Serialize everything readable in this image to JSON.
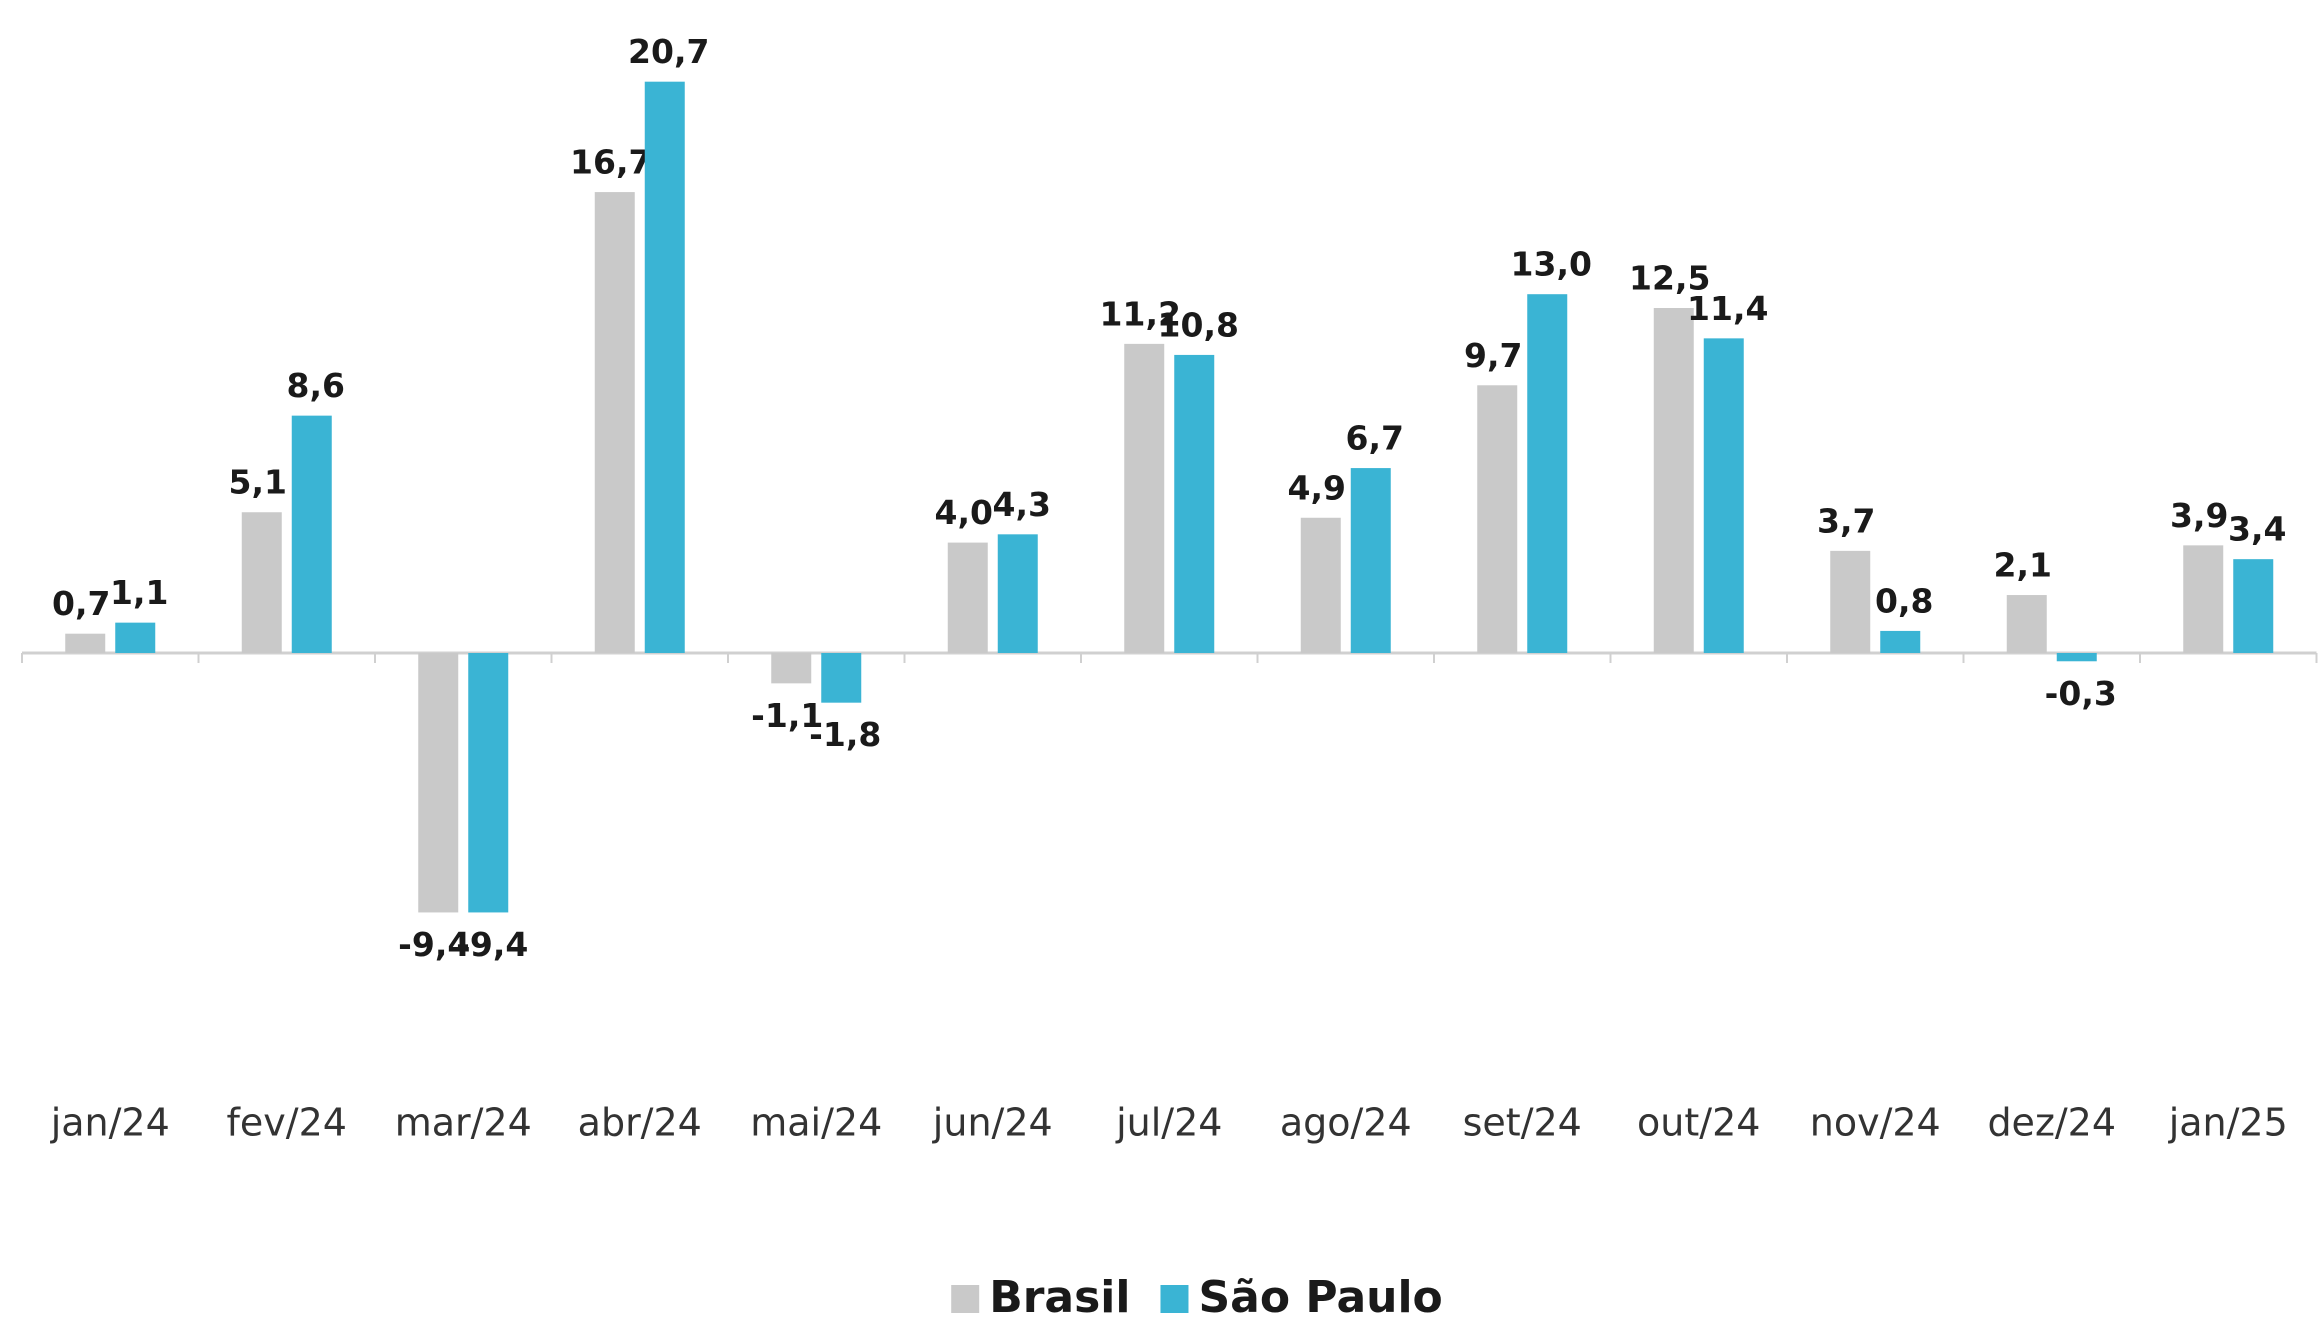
{
  "chart_data": {
    "type": "bar",
    "categories": [
      "jan/24",
      "fev/24",
      "mar/24",
      "abr/24",
      "mai/24",
      "jun/24",
      "jul/24",
      "ago/24",
      "set/24",
      "out/24",
      "nov/24",
      "dez/24",
      "jan/25"
    ],
    "series": [
      {
        "name": "Brasil",
        "color": "#c9c9c9",
        "values": [
          0.7,
          5.1,
          -9.4,
          16.7,
          -1.1,
          4.0,
          11.2,
          4.9,
          9.7,
          12.5,
          3.7,
          2.1,
          3.9
        ],
        "value_labels": [
          "0,7",
          "5,1",
          "-9,4",
          "16,7",
          "-1,1",
          "4,0",
          "11,2",
          "4,9",
          "9,7",
          "12,5",
          "3,7",
          "2,1",
          "3,9"
        ]
      },
      {
        "name": "São Paulo",
        "color": "#3ab4d4",
        "values": [
          1.1,
          8.6,
          -9.4,
          20.7,
          -1.8,
          4.3,
          10.8,
          6.7,
          13.0,
          11.4,
          0.8,
          -0.3,
          3.4
        ],
        "value_labels": [
          "1,1",
          "8,6",
          "-9,4",
          "20,7",
          "-1,8",
          "4,3",
          "10,8",
          "6,7",
          "13,0",
          "11,4",
          "0,8",
          "-0,3",
          "3,4"
        ]
      }
    ],
    "legend": "bottom"
  }
}
